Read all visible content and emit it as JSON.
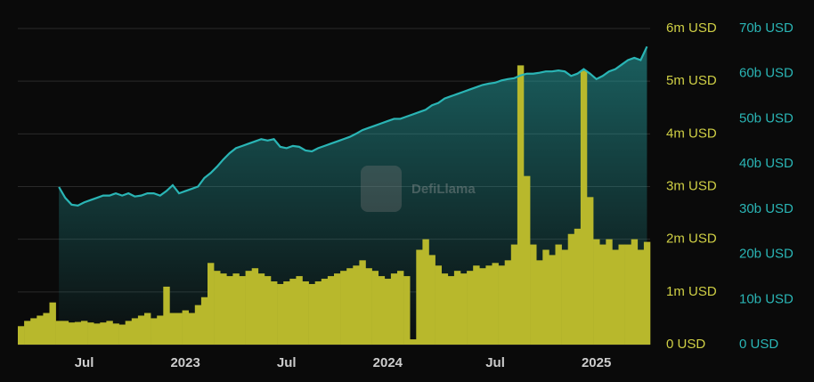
{
  "chart_data": {
    "type": "bar-area",
    "watermark": "DefiLlama",
    "categories": [
      null,
      null,
      null,
      null,
      null,
      null,
      null,
      null,
      null,
      null,
      "Jul",
      null,
      null,
      null,
      null,
      null,
      null,
      null,
      null,
      null,
      null,
      null,
      null,
      null,
      null,
      null,
      "2023",
      null,
      null,
      null,
      null,
      null,
      null,
      null,
      null,
      null,
      null,
      null,
      null,
      null,
      null,
      null,
      "Jul",
      null,
      null,
      null,
      null,
      null,
      null,
      null,
      null,
      null,
      null,
      null,
      null,
      null,
      null,
      null,
      "2024",
      null,
      null,
      null,
      null,
      null,
      null,
      null,
      null,
      null,
      null,
      null,
      null,
      null,
      null,
      null,
      null,
      "Jul",
      null,
      null,
      null,
      null,
      null,
      null,
      null,
      null,
      null,
      null,
      null,
      null,
      null,
      null,
      null,
      "2025",
      null,
      null,
      null,
      null,
      null,
      null,
      null,
      null
    ],
    "series": [
      {
        "type": "bar",
        "color": "#b8b82c",
        "values": [
          0.35,
          0.45,
          0.5,
          0.55,
          0.6,
          0.8,
          0.45,
          0.45,
          0.42,
          0.43,
          0.45,
          0.42,
          0.4,
          0.42,
          0.45,
          0.4,
          0.38,
          0.45,
          0.5,
          0.55,
          0.6,
          0.5,
          0.55,
          1.1,
          0.6,
          0.6,
          0.65,
          0.6,
          0.75,
          0.9,
          1.55,
          1.4,
          1.35,
          1.3,
          1.35,
          1.3,
          1.4,
          1.45,
          1.35,
          1.3,
          1.2,
          1.15,
          1.2,
          1.25,
          1.3,
          1.2,
          1.15,
          1.2,
          1.25,
          1.3,
          1.35,
          1.4,
          1.45,
          1.5,
          1.6,
          1.45,
          1.4,
          1.3,
          1.25,
          1.35,
          1.4,
          1.3,
          0.1,
          1.8,
          2.0,
          1.7,
          1.5,
          1.35,
          1.3,
          1.4,
          1.35,
          1.4,
          1.5,
          1.45,
          1.5,
          1.55,
          1.5,
          1.6,
          1.9,
          5.3,
          3.2,
          1.9,
          1.6,
          1.8,
          1.7,
          1.9,
          1.8,
          2.1,
          2.2,
          5.2,
          2.8,
          2.0,
          1.9,
          2.0,
          1.8,
          1.9,
          1.9,
          2.0,
          1.8,
          1.95
        ]
      },
      {
        "type": "area",
        "axis": "y2",
        "color": "#2ab5b5",
        "values": [
          null,
          null,
          null,
          null,
          null,
          null,
          34.9,
          32.5,
          31,
          30.8,
          31.5,
          32,
          32.5,
          33,
          33,
          33.5,
          33,
          33.5,
          32.8,
          33,
          33.5,
          33.5,
          33,
          34,
          35.3,
          33.5,
          34,
          34.5,
          35,
          36.9,
          38,
          39.4,
          41,
          42.4,
          43.5,
          44,
          44.5,
          45,
          45.5,
          45.2,
          45.5,
          43.8,
          43.5,
          44,
          43.8,
          43,
          42.8,
          43.5,
          44,
          44.5,
          45,
          45.5,
          46,
          46.7,
          47.5,
          48,
          48.5,
          49,
          49.5,
          50,
          50,
          50.5,
          51,
          51.5,
          52,
          53,
          53.5,
          54.5,
          55,
          55.5,
          56,
          56.5,
          57,
          57.5,
          57.8,
          58,
          58.5,
          58.8,
          59,
          59.6,
          60,
          60,
          60.2,
          60.5,
          60.5,
          60.7,
          60.5,
          59.5,
          60,
          61,
          60,
          58.8,
          59.5,
          60.5,
          61,
          62,
          63,
          63.5,
          63,
          66
        ]
      }
    ],
    "ylim": [
      0,
      6
    ],
    "yticks": [
      {
        "value": 0,
        "label": "0 USD"
      },
      {
        "value": 1,
        "label": "1m USD"
      },
      {
        "value": 2,
        "label": "2m USD"
      },
      {
        "value": 3,
        "label": "3m USD"
      },
      {
        "value": 4,
        "label": "4m USD"
      },
      {
        "value": 5,
        "label": "5m USD"
      },
      {
        "value": 6,
        "label": "6m USD"
      }
    ],
    "y2lim": [
      0,
      70
    ],
    "y2ticks": [
      {
        "value": 0,
        "label": "0 USD"
      },
      {
        "value": 10,
        "label": "10b USD"
      },
      {
        "value": 20,
        "label": "20b USD"
      },
      {
        "value": 30,
        "label": "30b USD"
      },
      {
        "value": 40,
        "label": "40b USD"
      },
      {
        "value": 50,
        "label": "50b USD"
      },
      {
        "value": 60,
        "label": "60b USD"
      },
      {
        "value": 70,
        "label": "70b USD"
      }
    ],
    "grid": true
  }
}
